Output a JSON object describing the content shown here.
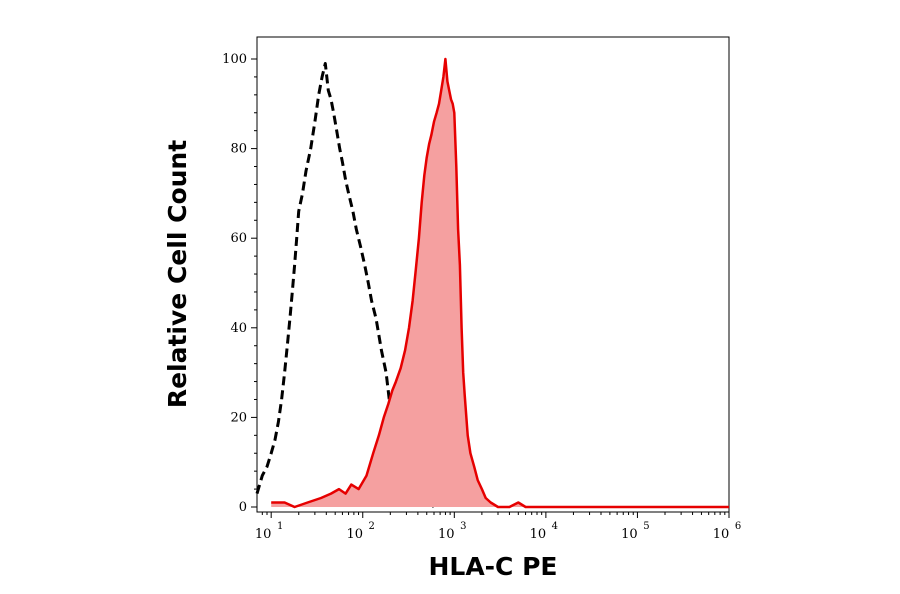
{
  "chart_data": {
    "type": "area",
    "xlabel": "HLA-C PE",
    "ylabel": "Relative Cell Count",
    "x_scale": "log",
    "xlim": [
      7,
      1000000
    ],
    "ylim": [
      0,
      100
    ],
    "x_ticks": [
      {
        "value": 10,
        "base": "10",
        "exp": "1"
      },
      {
        "value": 100,
        "base": "10",
        "exp": "2"
      },
      {
        "value": 1000,
        "base": "10",
        "exp": "3"
      },
      {
        "value": 10000,
        "base": "10",
        "exp": "4"
      },
      {
        "value": 100000,
        "base": "10",
        "exp": "5"
      },
      {
        "value": 1000000,
        "base": "10",
        "exp": "6"
      }
    ],
    "y_ticks": [
      {
        "value": 0,
        "label": "0"
      },
      {
        "value": 20,
        "label": "20"
      },
      {
        "value": 40,
        "label": "40"
      },
      {
        "value": 60,
        "label": "60"
      },
      {
        "value": 80,
        "label": "80"
      },
      {
        "value": 100,
        "label": "100"
      }
    ],
    "grid": false,
    "series": [
      {
        "style": "dashed",
        "color": "#000000",
        "filled": false,
        "points": [
          [
            7,
            3
          ],
          [
            8,
            7
          ],
          [
            9,
            9
          ],
          [
            10,
            12
          ],
          [
            11,
            15
          ],
          [
            12,
            19
          ],
          [
            13,
            24
          ],
          [
            14,
            30
          ],
          [
            15,
            36
          ],
          [
            16,
            42
          ],
          [
            17,
            48
          ],
          [
            18,
            54
          ],
          [
            19,
            60
          ],
          [
            20,
            66
          ],
          [
            22,
            70
          ],
          [
            24,
            75
          ],
          [
            27,
            80
          ],
          [
            30,
            86
          ],
          [
            33,
            92
          ],
          [
            36,
            96
          ],
          [
            39,
            99
          ],
          [
            42,
            93
          ],
          [
            45,
            91
          ],
          [
            48,
            88
          ],
          [
            52,
            84
          ],
          [
            56,
            80
          ],
          [
            60,
            77
          ],
          [
            65,
            73
          ],
          [
            70,
            70
          ],
          [
            78,
            66
          ],
          [
            85,
            62
          ],
          [
            95,
            58
          ],
          [
            105,
            54
          ],
          [
            115,
            50
          ],
          [
            125,
            46
          ],
          [
            140,
            42
          ],
          [
            160,
            35
          ],
          [
            180,
            30
          ],
          [
            200,
            22
          ],
          [
            220,
            16
          ],
          [
            250,
            10
          ],
          [
            280,
            8
          ],
          [
            320,
            4
          ],
          [
            360,
            3
          ],
          [
            400,
            1
          ],
          [
            450,
            3
          ],
          [
            500,
            2
          ],
          [
            550,
            1
          ],
          [
            600,
            0
          ]
        ]
      },
      {
        "style": "solid",
        "color": "#e60000",
        "fill": "#f5a0a0",
        "filled": true,
        "points": [
          [
            10,
            1
          ],
          [
            14,
            1
          ],
          [
            18,
            0
          ],
          [
            25,
            1
          ],
          [
            35,
            2
          ],
          [
            45,
            3
          ],
          [
            55,
            4
          ],
          [
            65,
            3
          ],
          [
            75,
            5
          ],
          [
            90,
            4
          ],
          [
            110,
            7
          ],
          [
            130,
            12
          ],
          [
            150,
            16
          ],
          [
            170,
            20
          ],
          [
            190,
            23
          ],
          [
            210,
            26
          ],
          [
            230,
            28
          ],
          [
            260,
            31
          ],
          [
            290,
            35
          ],
          [
            320,
            40
          ],
          [
            350,
            46
          ],
          [
            380,
            53
          ],
          [
            410,
            60
          ],
          [
            440,
            68
          ],
          [
            470,
            74
          ],
          [
            500,
            78
          ],
          [
            530,
            81
          ],
          [
            560,
            83
          ],
          [
            600,
            86
          ],
          [
            640,
            88
          ],
          [
            680,
            90
          ],
          [
            720,
            93
          ],
          [
            760,
            96
          ],
          [
            800,
            100
          ],
          [
            840,
            95
          ],
          [
            880,
            93
          ],
          [
            920,
            91
          ],
          [
            960,
            90
          ],
          [
            1000,
            88
          ],
          [
            1050,
            76
          ],
          [
            1100,
            62
          ],
          [
            1150,
            54
          ],
          [
            1200,
            40
          ],
          [
            1250,
            30
          ],
          [
            1300,
            25
          ],
          [
            1400,
            16
          ],
          [
            1500,
            12
          ],
          [
            1650,
            9
          ],
          [
            1800,
            6
          ],
          [
            2000,
            4
          ],
          [
            2200,
            2
          ],
          [
            2500,
            1
          ],
          [
            3000,
            0
          ],
          [
            4000,
            0
          ],
          [
            5000,
            1
          ],
          [
            6000,
            0
          ],
          [
            10000,
            0
          ],
          [
            100000,
            0
          ],
          [
            1000000,
            0
          ]
        ]
      }
    ]
  }
}
